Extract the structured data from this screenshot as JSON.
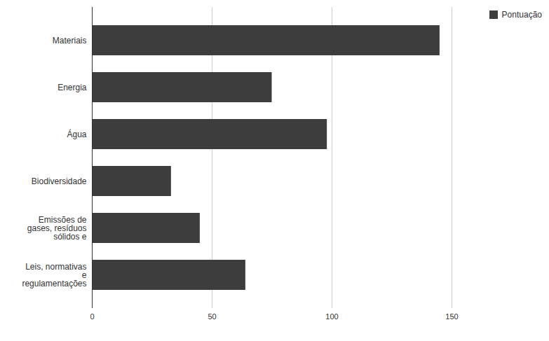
{
  "chart_data": {
    "type": "bar",
    "orientation": "horizontal",
    "categories": [
      "Materiais",
      "Energia",
      "Água",
      "Biodiversidade",
      "Emissões de gases, resíduos sólidos e",
      "Leis, normativas e regulamentações"
    ],
    "series": [
      {
        "name": "Pontuação",
        "color": "#3d3d3d",
        "values": [
          145,
          75,
          98,
          33,
          45,
          64
        ]
      }
    ],
    "xlim": [
      0,
      150
    ],
    "xticks": [
      0,
      50,
      100,
      150
    ],
    "grid": true,
    "legend": "top-right"
  }
}
